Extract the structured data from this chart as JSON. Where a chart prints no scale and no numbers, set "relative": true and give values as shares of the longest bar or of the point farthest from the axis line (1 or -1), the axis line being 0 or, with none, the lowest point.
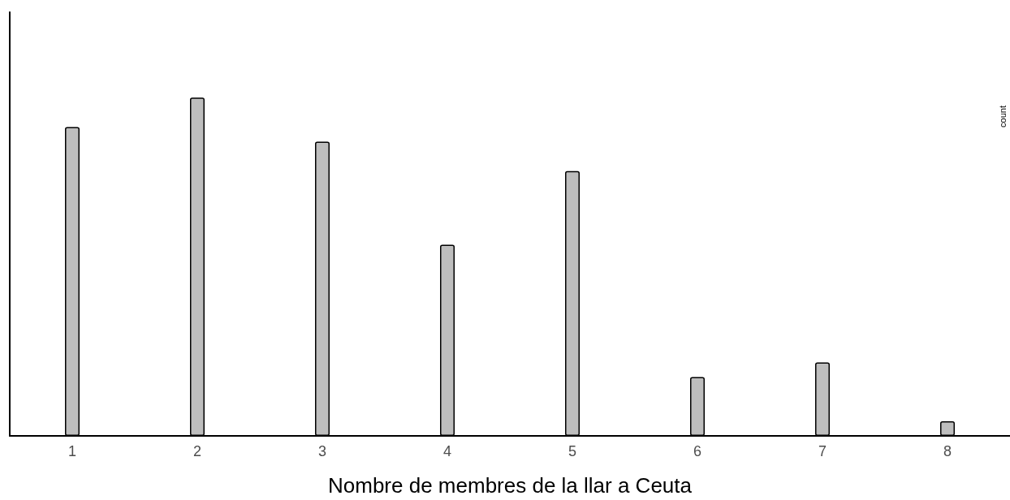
{
  "chart_data": {
    "type": "bar",
    "relative": true,
    "categories": [
      "1",
      "2",
      "3",
      "4",
      "5",
      "6",
      "7",
      "8"
    ],
    "values": [
      0.913,
      1,
      0.87,
      0.565,
      0.783,
      0.174,
      0.217,
      0.043
    ],
    "color": "#bebebe",
    "xlabel": "Nombre de membres de la llar a Ceuta",
    "ylabel": "count"
  }
}
